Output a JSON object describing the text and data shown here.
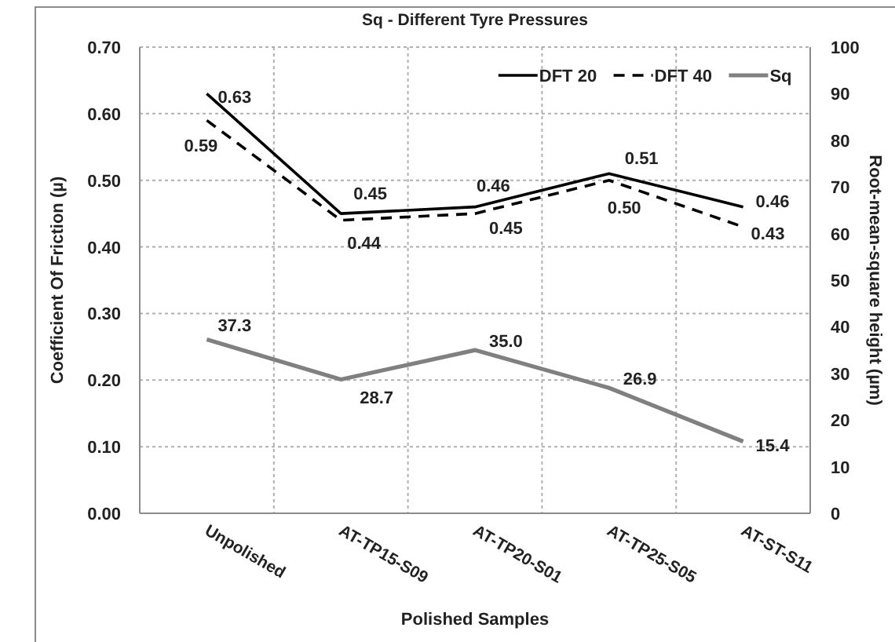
{
  "chart_data": {
    "type": "line",
    "title": "Sq - Different Tyre Pressures",
    "xlabel": "Polished Samples",
    "ylabel": "Coefficient Of Friction (µ)",
    "y2label": "Root-mean-square height (µm)",
    "categories": [
      "Unpolished",
      "AT-TP15-S09",
      "AT-TP20-S01",
      "AT-TP25-S05",
      "AT-ST-S11"
    ],
    "series": [
      {
        "name": "DFT 20",
        "color": "#000000",
        "line_style": "solid",
        "values": [
          0.63,
          0.45,
          0.46,
          0.51,
          0.46
        ],
        "value_labels": [
          "0.63",
          "0.45",
          "0.46",
          "0.51",
          "0.46"
        ]
      },
      {
        "name": "DFT 40",
        "color": "#000000",
        "line_style": "dashed",
        "values": [
          0.59,
          0.44,
          0.45,
          0.5,
          0.43
        ],
        "value_labels": [
          "0.59",
          "0.44",
          "0.45",
          "0.50",
          "0.43"
        ]
      },
      {
        "name": "Sq",
        "color": "#808080",
        "line_style": "solid",
        "axis": "y2",
        "values": [
          37.3,
          28.7,
          35.0,
          26.9,
          15.4
        ],
        "value_labels": [
          "37.3",
          "28.7",
          "35.0",
          "26.9",
          "15.4"
        ]
      }
    ],
    "ylim": [
      0,
      0.7
    ],
    "yticks": [
      {
        "value": 0,
        "label": "0.00"
      },
      {
        "value": 0.1,
        "label": "0.10"
      },
      {
        "value": 0.2,
        "label": "0.20"
      },
      {
        "value": 0.3,
        "label": "0.30"
      },
      {
        "value": 0.4,
        "label": "0.40"
      },
      {
        "value": 0.5,
        "label": "0.50"
      },
      {
        "value": 0.6,
        "label": "0.60"
      },
      {
        "value": 0.7,
        "label": "0.70"
      }
    ],
    "y2lim": [
      0,
      100
    ],
    "y2ticks": [
      0,
      10,
      20,
      30,
      40,
      50,
      60,
      70,
      80,
      90,
      100
    ],
    "grid": true,
    "legend": "top right"
  }
}
